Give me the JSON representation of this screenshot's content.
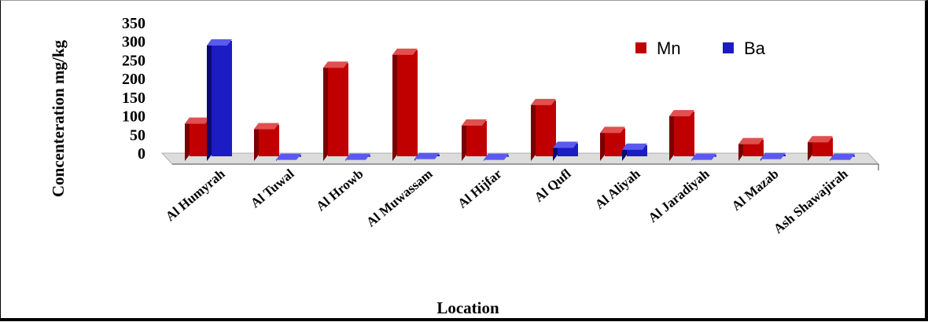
{
  "chart_data": {
    "type": "bar",
    "title": "",
    "xlabel": "Location",
    "ylabel": "Concenteration mg/kg",
    "ylim": [
      0,
      350
    ],
    "yticks": [
      "0",
      "50",
      "100",
      "150",
      "200",
      "250",
      "300",
      "350"
    ],
    "ytick_values": [
      0,
      50,
      100,
      150,
      200,
      250,
      300,
      350
    ],
    "categories": [
      "Al Humyrah",
      "Al Tuwal",
      "Al Hrowb",
      "Al Muwassam",
      "Al Hijfar",
      "Al  Qufl",
      "Al Aliyah",
      "Al Jaradiyah",
      "Al Mazab",
      "Ash Shawajirah"
    ],
    "series": [
      {
        "name": "Mn",
        "values": [
          100,
          85,
          250,
          285,
          95,
          150,
          75,
          120,
          45,
          50
        ]
      },
      {
        "name": "Ba",
        "values": [
          310,
          3,
          3,
          5,
          3,
          35,
          30,
          3,
          5,
          3
        ]
      }
    ],
    "legend_position": "top-right",
    "grid": false,
    "style": "3d-column",
    "colors": {
      "Mn": {
        "front": "#c00000",
        "side": "#7a0000",
        "top": "#e05050"
      },
      "Ba": {
        "front": "#1c1cc4",
        "side": "#0a0a6e",
        "top": "#5a5aee"
      },
      "floor": "#dcdcdc",
      "axis": "#808080"
    }
  }
}
